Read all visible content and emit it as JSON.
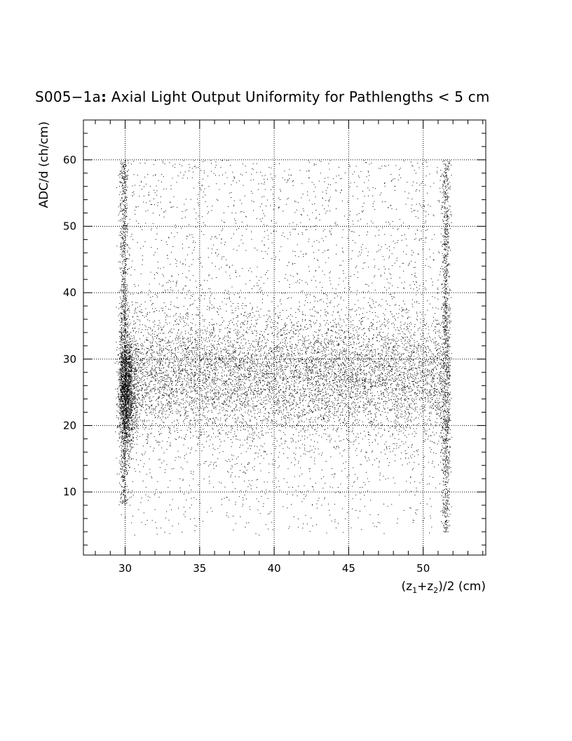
{
  "chart_data": {
    "type": "scatter",
    "title_id": "S005−1a",
    "title_sep": ":",
    "title_text": " Axial Light Output Uniformity for Pathlengths < 5 cm",
    "xlabel": {
      "open": "(z",
      "sub1": "1",
      "plus": "+z",
      "sub2": "2",
      "close": ")/2 (cm)"
    },
    "ylabel": "ADC/d (ch/cm)",
    "xlim": [
      27.2,
      54.2
    ],
    "ylim": [
      0.5,
      66
    ],
    "xticks": [
      30,
      35,
      40,
      45,
      50
    ],
    "yticks": [
      10,
      20,
      30,
      40,
      50,
      60
    ],
    "grid": true,
    "marker_color": "#000000",
    "distribution": {
      "x_range": [
        29.6,
        51.8
      ],
      "y_range": [
        3.5,
        60
      ],
      "band_center_y": 27.5,
      "band_spread_y": 5,
      "dense_cluster": {
        "x": 30.1,
        "y": 25,
        "sx_spread": 0.3,
        "sy_spread": 4
      },
      "edge_strips_x": [
        29.9,
        51.5
      ],
      "n_points": 14000
    }
  }
}
